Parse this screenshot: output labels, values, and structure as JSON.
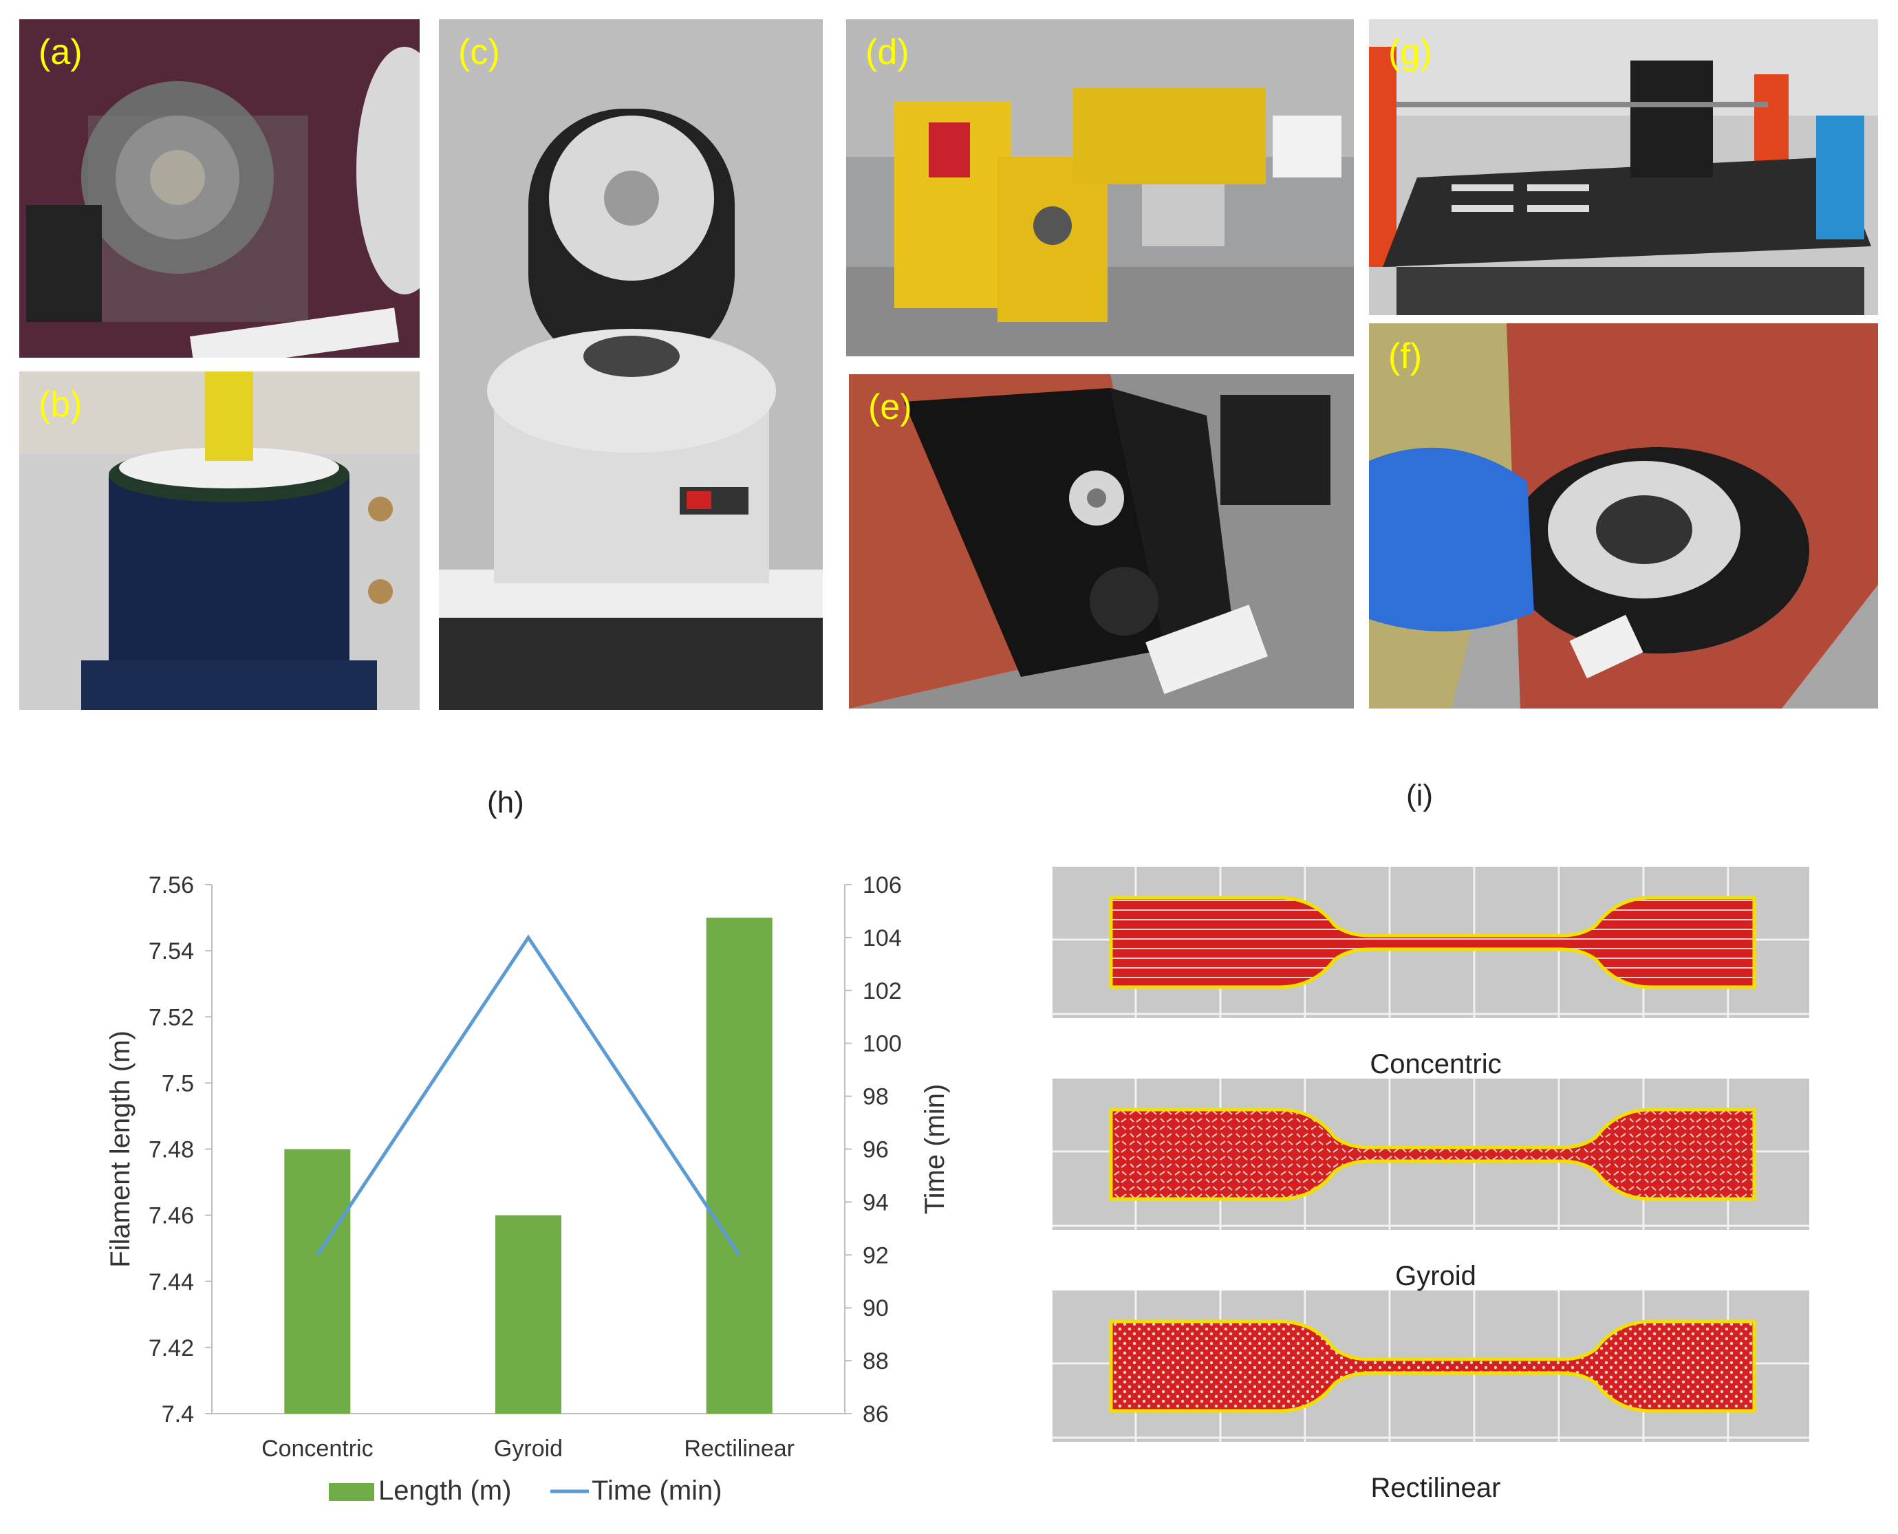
{
  "photos": {
    "a": "(a)",
    "b": "(b)",
    "c": "(c)",
    "d": "(d)",
    "e": "(e)",
    "f": "(f)",
    "g": "(g)"
  },
  "panel_h": "(h)",
  "panel_i": "(i)",
  "chart_data": {
    "type": "bar",
    "categories": [
      "Concentric",
      "Gyroid",
      "Rectilinear"
    ],
    "series": [
      {
        "name": "Length (m)",
        "type": "bar",
        "axis": "left",
        "values": [
          7.48,
          7.46,
          7.55
        ],
        "color": "#70ad47"
      },
      {
        "name": "Time (min)",
        "type": "line",
        "axis": "right",
        "values": [
          92,
          104,
          92
        ],
        "color": "#5b9bd5"
      }
    ],
    "ylabel": "Filament length (m)",
    "y2label": "Time (min)",
    "ylim": [
      7.4,
      7.56
    ],
    "y2lim": [
      86,
      106
    ],
    "yticks": [
      "7.4",
      "7.42",
      "7.44",
      "7.46",
      "7.48",
      "7.5",
      "7.52",
      "7.54",
      "7.56"
    ],
    "y2ticks": [
      "86",
      "88",
      "90",
      "92",
      "94",
      "96",
      "98",
      "100",
      "102",
      "104",
      "106"
    ],
    "grid": false,
    "legend": "bottom"
  },
  "infill_captions": [
    "Concentric",
    "Gyroid",
    "Rectilinear"
  ]
}
